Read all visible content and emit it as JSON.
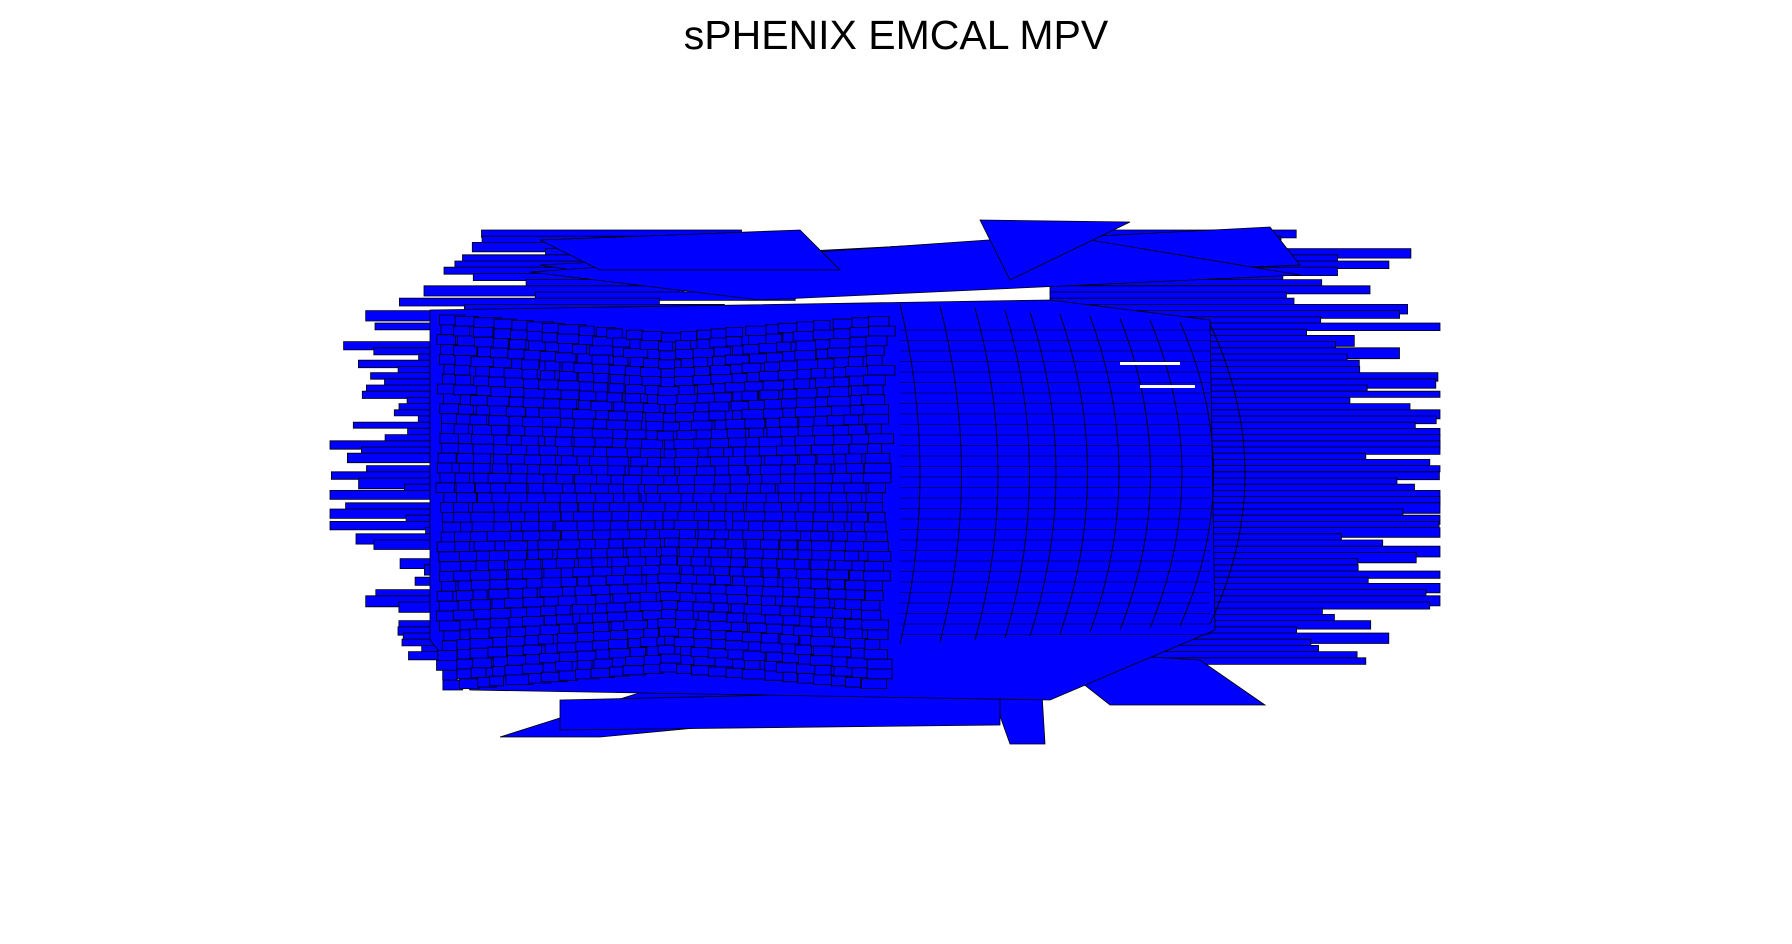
{
  "chart_data": {
    "type": "lego-3d",
    "title": "sPHENIX EMCAL MPV",
    "xlabel": "",
    "ylabel": "",
    "zlabel": "",
    "axes_visible": false,
    "grid": false,
    "legend": "none",
    "projection": "cylindrical lego plot",
    "colors": {
      "fill": "#0000ff",
      "edge": "#000000",
      "background": "#ffffff"
    }
  }
}
